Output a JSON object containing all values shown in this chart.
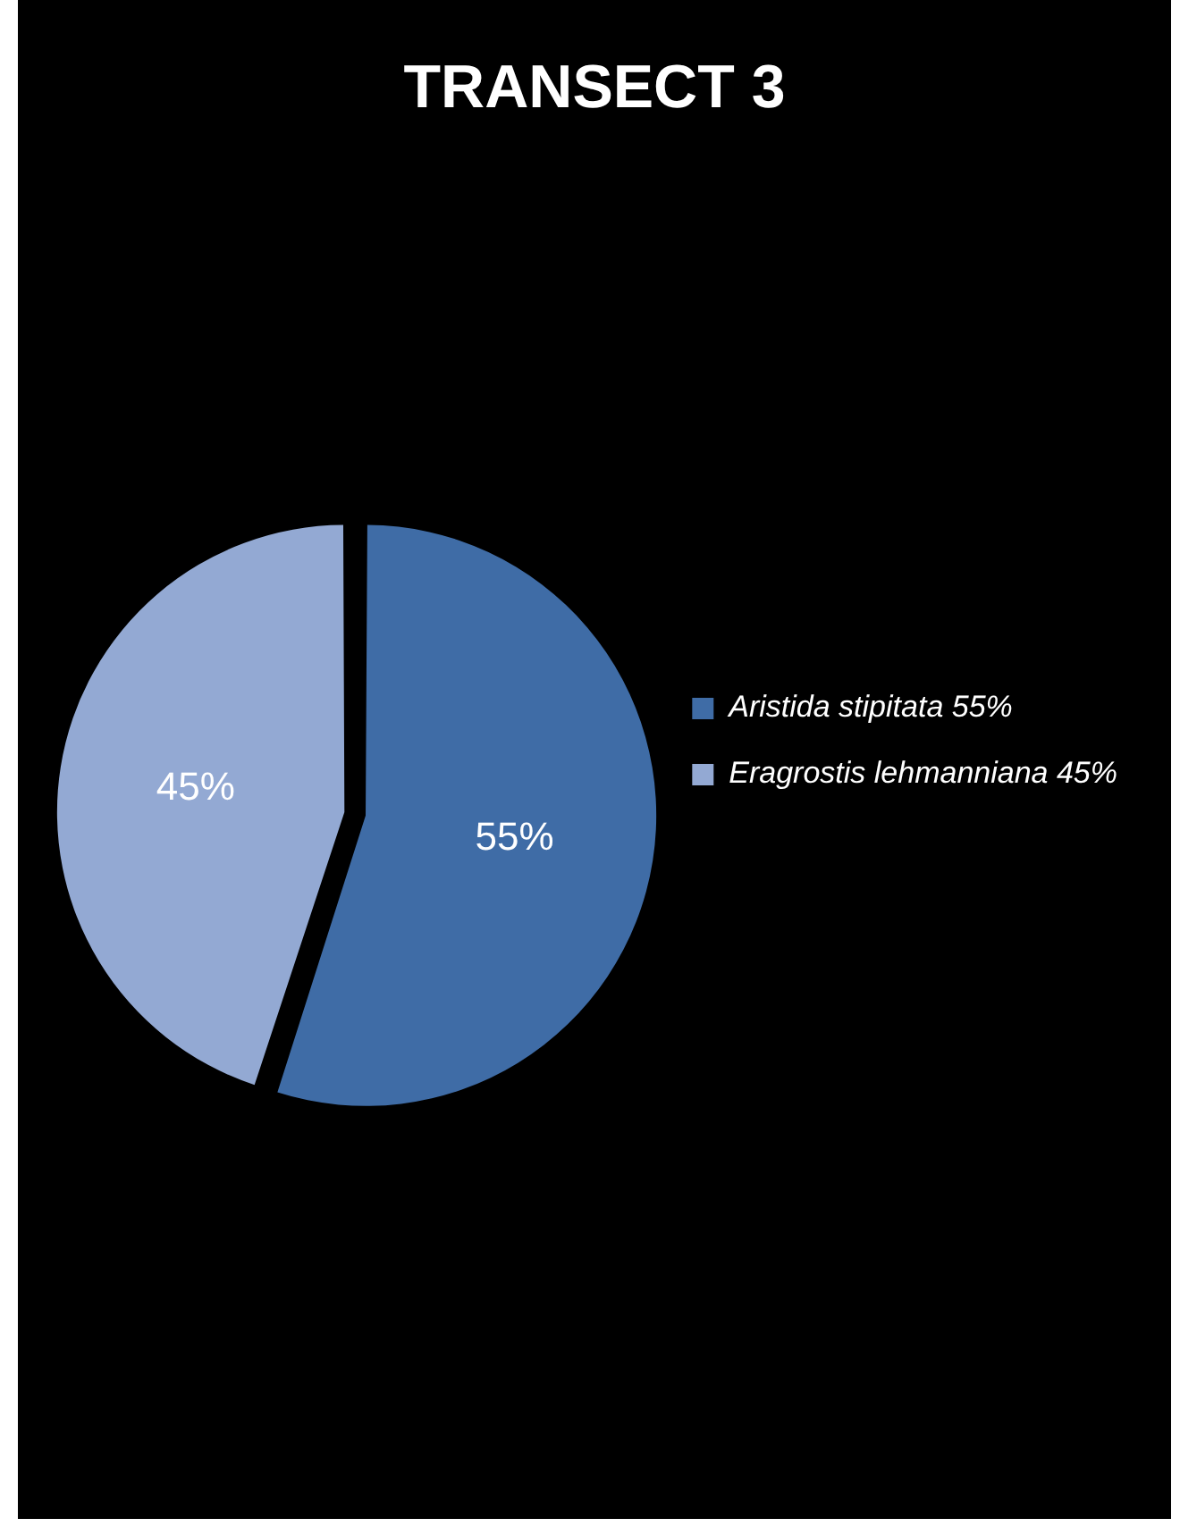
{
  "chart_data": {
    "type": "pie",
    "title": "TRANSECT 3",
    "categories": [
      "Aristida stipitata 55%",
      "Eragrostis lehmanniana 45%"
    ],
    "values": [
      55,
      45
    ],
    "colors": [
      "#3f6ca6",
      "#93a9d3"
    ],
    "value_labels": [
      "55%",
      "45%"
    ],
    "legend": "right"
  }
}
